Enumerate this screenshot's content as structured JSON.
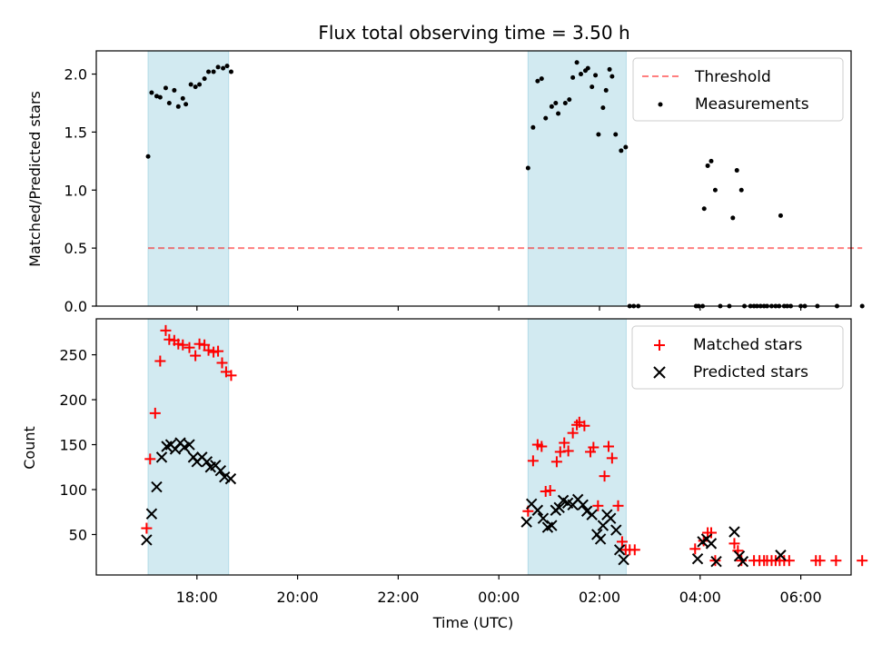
{
  "title": "Flux total observing time = 3.50 h",
  "xlabel": "Time (UTC)",
  "x_ticks": [
    "18:00",
    "20:00",
    "22:00",
    "00:00",
    "02:00",
    "04:00",
    "06:00"
  ],
  "colors": {
    "shade": "#add8e6",
    "threshold": "#ff0000",
    "measurements": "#000000",
    "matched": "#ff0000",
    "predicted": "#000000"
  },
  "chart_data": [
    {
      "type": "scatter",
      "ylabel": "Matched/Predicted stars",
      "ylim": [
        0,
        2.2
      ],
      "xlim_hours": [
        16.0,
        31.0
      ],
      "y_ticks": [
        "0.0",
        "0.5",
        "1.0",
        "1.5",
        "2.0"
      ],
      "shaded_intervals_hours": [
        [
          17.03,
          18.63
        ],
        [
          24.58,
          26.53
        ]
      ],
      "threshold": {
        "name": "Threshold",
        "value": 0.5,
        "x_range_hours": [
          17.03,
          31.22
        ]
      },
      "legend": {
        "loc": "upper right",
        "entries": [
          "Threshold",
          "Measurements"
        ]
      },
      "series": [
        {
          "name": "Measurements",
          "points": [
            [
              17.03,
              1.29
            ],
            [
              17.1,
              1.84
            ],
            [
              17.2,
              1.81
            ],
            [
              17.27,
              1.8
            ],
            [
              17.38,
              1.88
            ],
            [
              17.45,
              1.75
            ],
            [
              17.55,
              1.86
            ],
            [
              17.63,
              1.72
            ],
            [
              17.72,
              1.79
            ],
            [
              17.78,
              1.74
            ],
            [
              17.88,
              1.91
            ],
            [
              17.97,
              1.89
            ],
            [
              18.05,
              1.91
            ],
            [
              18.15,
              1.96
            ],
            [
              18.23,
              2.02
            ],
            [
              18.33,
              2.02
            ],
            [
              18.42,
              2.06
            ],
            [
              18.52,
              2.05
            ],
            [
              18.6,
              2.07
            ],
            [
              18.68,
              2.02
            ],
            [
              24.58,
              1.19
            ],
            [
              24.68,
              1.54
            ],
            [
              24.77,
              1.94
            ],
            [
              24.85,
              1.96
            ],
            [
              24.93,
              1.62
            ],
            [
              25.05,
              1.72
            ],
            [
              25.13,
              1.75
            ],
            [
              25.18,
              1.66
            ],
            [
              25.32,
              1.75
            ],
            [
              25.4,
              1.78
            ],
            [
              25.47,
              1.97
            ],
            [
              25.55,
              2.1
            ],
            [
              25.63,
              2.0
            ],
            [
              25.72,
              2.03
            ],
            [
              25.77,
              2.05
            ],
            [
              25.85,
              1.89
            ],
            [
              25.92,
              1.99
            ],
            [
              25.98,
              1.48
            ],
            [
              26.07,
              1.71
            ],
            [
              26.13,
              1.86
            ],
            [
              26.2,
              2.04
            ],
            [
              26.25,
              1.98
            ],
            [
              26.32,
              1.48
            ],
            [
              26.43,
              1.34
            ],
            [
              26.52,
              1.37
            ],
            [
              26.6,
              0
            ],
            [
              26.68,
              0
            ],
            [
              26.77,
              0
            ],
            [
              27.92,
              0
            ],
            [
              27.97,
              0
            ],
            [
              28.05,
              0
            ],
            [
              28.08,
              0.84
            ],
            [
              28.15,
              1.21
            ],
            [
              28.22,
              1.25
            ],
            [
              28.3,
              1.0
            ],
            [
              28.4,
              0
            ],
            [
              28.58,
              0
            ],
            [
              28.65,
              0.76
            ],
            [
              28.73,
              1.17
            ],
            [
              28.82,
              1.0
            ],
            [
              28.88,
              0
            ],
            [
              29.0,
              0
            ],
            [
              29.07,
              0
            ],
            [
              29.13,
              0
            ],
            [
              29.2,
              0
            ],
            [
              29.27,
              0
            ],
            [
              29.33,
              0
            ],
            [
              29.42,
              0
            ],
            [
              29.5,
              0
            ],
            [
              29.57,
              0
            ],
            [
              29.6,
              0.78
            ],
            [
              29.67,
              0
            ],
            [
              29.73,
              0
            ],
            [
              29.8,
              0
            ],
            [
              30.0,
              0
            ],
            [
              30.08,
              0
            ],
            [
              30.33,
              0
            ],
            [
              30.72,
              0
            ],
            [
              31.22,
              0
            ]
          ]
        }
      ]
    },
    {
      "type": "scatter",
      "ylabel": "Count",
      "ylim": [
        5,
        290
      ],
      "xlim_hours": [
        16.0,
        31.0
      ],
      "y_ticks": [
        "50",
        "100",
        "150",
        "200",
        "250"
      ],
      "shaded_intervals_hours": [
        [
          17.03,
          18.63
        ],
        [
          24.58,
          26.53
        ]
      ],
      "legend": {
        "loc": "upper right",
        "entries": [
          "Matched stars",
          "Predicted stars"
        ]
      },
      "series": [
        {
          "name": "Matched stars",
          "points": [
            [
              17.0,
              57
            ],
            [
              17.07,
              134
            ],
            [
              17.17,
              185
            ],
            [
              17.27,
              243
            ],
            [
              17.38,
              277
            ],
            [
              17.45,
              267
            ],
            [
              17.55,
              266
            ],
            [
              17.63,
              262
            ],
            [
              17.72,
              261
            ],
            [
              17.85,
              258
            ],
            [
              17.97,
              249
            ],
            [
              18.05,
              262
            ],
            [
              18.15,
              261
            ],
            [
              18.23,
              255
            ],
            [
              18.33,
              253
            ],
            [
              18.42,
              254
            ],
            [
              18.5,
              241
            ],
            [
              18.58,
              231
            ],
            [
              18.68,
              227
            ],
            [
              24.58,
              76
            ],
            [
              24.68,
              132
            ],
            [
              24.77,
              150
            ],
            [
              24.85,
              148
            ],
            [
              24.93,
              98
            ],
            [
              25.02,
              99
            ],
            [
              25.15,
              131
            ],
            [
              25.22,
              142
            ],
            [
              25.3,
              152
            ],
            [
              25.38,
              143
            ],
            [
              25.47,
              163
            ],
            [
              25.55,
              172
            ],
            [
              25.6,
              175
            ],
            [
              25.7,
              171
            ],
            [
              25.82,
              142
            ],
            [
              25.88,
              147
            ],
            [
              25.97,
              82
            ],
            [
              26.1,
              115
            ],
            [
              26.18,
              148
            ],
            [
              26.25,
              135
            ],
            [
              26.37,
              82
            ],
            [
              26.45,
              42
            ],
            [
              26.52,
              33
            ],
            [
              26.6,
              33
            ],
            [
              26.7,
              33
            ],
            [
              27.9,
              34
            ],
            [
              28.07,
              43
            ],
            [
              28.15,
              52
            ],
            [
              28.22,
              52
            ],
            [
              28.3,
              21
            ],
            [
              28.68,
              40
            ],
            [
              28.75,
              32
            ],
            [
              28.82,
              21
            ],
            [
              29.07,
              21
            ],
            [
              29.18,
              21
            ],
            [
              29.27,
              21
            ],
            [
              29.33,
              21
            ],
            [
              29.42,
              21
            ],
            [
              29.5,
              21
            ],
            [
              29.58,
              21
            ],
            [
              29.67,
              21
            ],
            [
              29.77,
              21
            ],
            [
              30.3,
              21
            ],
            [
              30.38,
              21
            ],
            [
              30.7,
              21
            ],
            [
              31.22,
              21
            ]
          ]
        },
        {
          "name": "Predicted stars",
          "points": [
            [
              17.0,
              44
            ],
            [
              17.1,
              73
            ],
            [
              17.2,
              103
            ],
            [
              17.3,
              136
            ],
            [
              17.4,
              148
            ],
            [
              17.48,
              150
            ],
            [
              17.57,
              145
            ],
            [
              17.67,
              152
            ],
            [
              17.75,
              147
            ],
            [
              17.85,
              150
            ],
            [
              17.93,
              136
            ],
            [
              18.0,
              131
            ],
            [
              18.1,
              136
            ],
            [
              18.2,
              131
            ],
            [
              18.27,
              125
            ],
            [
              18.37,
              127
            ],
            [
              18.47,
              121
            ],
            [
              18.55,
              114
            ],
            [
              18.67,
              112
            ],
            [
              24.55,
              64
            ],
            [
              24.65,
              84
            ],
            [
              24.77,
              77
            ],
            [
              24.88,
              68
            ],
            [
              24.97,
              58
            ],
            [
              25.05,
              60
            ],
            [
              25.13,
              77
            ],
            [
              25.2,
              80
            ],
            [
              25.28,
              88
            ],
            [
              25.37,
              85
            ],
            [
              25.47,
              83
            ],
            [
              25.57,
              89
            ],
            [
              25.67,
              83
            ],
            [
              25.75,
              76
            ],
            [
              25.85,
              72
            ],
            [
              25.95,
              50
            ],
            [
              26.02,
              45
            ],
            [
              26.07,
              60
            ],
            [
              26.15,
              72
            ],
            [
              26.22,
              68
            ],
            [
              26.33,
              55
            ],
            [
              26.4,
              33
            ],
            [
              26.48,
              22
            ],
            [
              27.95,
              23
            ],
            [
              28.05,
              42
            ],
            [
              28.13,
              45
            ],
            [
              28.22,
              40
            ],
            [
              28.32,
              20
            ],
            [
              28.68,
              53
            ],
            [
              28.78,
              26
            ],
            [
              28.85,
              20
            ],
            [
              29.6,
              27
            ]
          ]
        }
      ]
    }
  ]
}
